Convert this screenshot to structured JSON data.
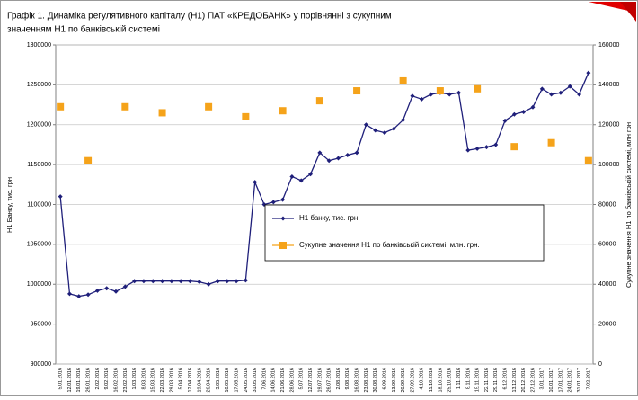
{
  "chart_data": {
    "type": "line",
    "title": "Графік 1. Динаміка регулятивного капіталу (Н1) ПАТ «КРЕДОБАНК»  у порівнянні з сукупним",
    "subtitle": "значенням Н1 по банківській системі",
    "y_label": "Н1 Банку, тис. грн",
    "y2_label": "Сукупне  значення Н1 по банківській системі, млн грн",
    "categories": [
      "5.01.2016",
      "12.01.2016",
      "19.01.2016",
      "26.01.2016",
      "2.02.2016",
      "9.02.2016",
      "16.02.2016",
      "23.02.2016",
      "1.03.2016",
      "8.03.2016",
      "15.03.2016",
      "22.03.2016",
      "29.03.2016",
      "5.04.2016",
      "12.04.2016",
      "19.04.2016",
      "26.04.2016",
      "3.05.2016",
      "10.05.2016",
      "17.05.2016",
      "24.05.2016",
      "31.05.2016",
      "7.06.2016",
      "14.06.2016",
      "21.06.2016",
      "28.06.2016",
      "5.07.2016",
      "12.07.2016",
      "19.07.2016",
      "26.07.2016",
      "2.08.2016",
      "9.08.2016",
      "16.08.2016",
      "23.08.2016",
      "30.08.2016",
      "6.09.2016",
      "13.09.2016",
      "20.09.2016",
      "27.09.2016",
      "4.10.2016",
      "11.10.2016",
      "18.10.2016",
      "25.10.2016",
      "1.11.2016",
      "8.11.2016",
      "15.11.2016",
      "22.11.2016",
      "29.11.2016",
      "6.12.2016",
      "13.12.2016",
      "20.12.2016",
      "27.12.2016",
      "3.01.2017",
      "10.01.2017",
      "17.01.2017",
      "24.01.2017",
      "31.01.2017",
      "7.02.2017"
    ],
    "series": [
      {
        "name": "Н1 банку, тис. грн.",
        "color": "#1f1f7a",
        "values": [
          1110000,
          988000,
          985000,
          987000,
          992000,
          995000,
          991000,
          997000,
          1004000,
          1004000,
          1004000,
          1004000,
          1004000,
          1004000,
          1004000,
          1003000,
          1000000,
          1004000,
          1004000,
          1004000,
          1005000,
          1128000,
          1100000,
          1103000,
          1106000,
          1135000,
          1130000,
          1138000,
          1165000,
          1155000,
          1158000,
          1162000,
          1165000,
          1200000,
          1193000,
          1190000,
          1195000,
          1206000,
          1236000,
          1232000,
          1238000,
          1240000,
          1238000,
          1240000,
          1168000,
          1170000,
          1172000,
          1175000,
          1205000,
          1213000,
          1216000,
          1222000,
          1245000,
          1238000,
          1240000,
          1248000,
          1238000,
          1265000
        ]
      },
      {
        "name": "Сукупне значення Н1 по банківській системі, млн. грн.",
        "color": "#f5a31a",
        "axis": "y2",
        "values": [
          129000,
          null,
          null,
          102000,
          null,
          null,
          null,
          129000,
          null,
          null,
          null,
          126000,
          null,
          null,
          null,
          null,
          129000,
          null,
          null,
          null,
          124000,
          null,
          null,
          null,
          127000,
          null,
          null,
          null,
          132000,
          null,
          null,
          null,
          137000,
          null,
          null,
          null,
          null,
          142000,
          null,
          null,
          null,
          137000,
          null,
          null,
          null,
          138000,
          null,
          null,
          null,
          109000,
          null,
          null,
          null,
          111000,
          null,
          null,
          null,
          102000
        ]
      }
    ],
    "ylim": [
      900000,
      1300000
    ],
    "yticks": [
      900000,
      950000,
      1000000,
      1050000,
      1100000,
      1150000,
      1200000,
      1250000,
      1300000
    ],
    "y2lim": [
      0,
      160000
    ],
    "y2ticks": [
      0,
      20000,
      40000,
      60000,
      80000,
      100000,
      120000,
      140000,
      160000
    ],
    "grid": true
  }
}
